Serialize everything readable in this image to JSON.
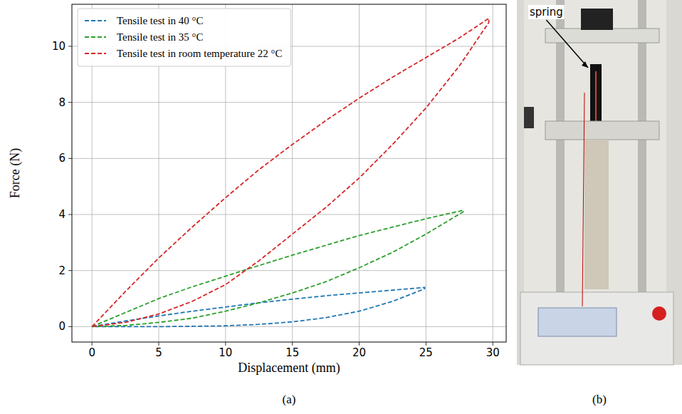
{
  "chart_data": {
    "type": "line",
    "x_label": "Displacement (mm)",
    "y_label": "Force (N)",
    "xlim": [
      -1.5,
      31
    ],
    "ylim": [
      -0.55,
      11.5
    ],
    "xticks": [
      0,
      5,
      10,
      15,
      20,
      25,
      30
    ],
    "yticks": [
      0,
      2,
      4,
      6,
      8,
      10
    ],
    "grid": true,
    "legend": "upper-left",
    "line_style": "dashed",
    "series": [
      {
        "name": "Tensile test in 40 °C",
        "color": "#1f77b4",
        "x": [
          0,
          2.5,
          5,
          7.5,
          10,
          12.5,
          15,
          17.5,
          20,
          22.5,
          24.9,
          24.9,
          22.5,
          20,
          17.5,
          15,
          12.5,
          10,
          7.5,
          5,
          2.5,
          0
        ],
        "values": [
          0,
          0.2,
          0.38,
          0.55,
          0.7,
          0.85,
          0.98,
          1.1,
          1.2,
          1.3,
          1.4,
          1.35,
          0.9,
          0.55,
          0.32,
          0.17,
          0.08,
          0.03,
          0.01,
          0,
          0,
          0
        ]
      },
      {
        "name": "Tensile test in 35 °C",
        "color": "#2ca02c",
        "x": [
          0,
          2.5,
          5,
          7.5,
          10,
          12.5,
          15,
          17.5,
          20,
          22.5,
          25,
          27.8,
          27.8,
          25,
          22.5,
          20,
          17.5,
          15,
          12.5,
          10,
          7.5,
          5,
          2.5,
          0
        ],
        "values": [
          0,
          0.5,
          1.0,
          1.42,
          1.8,
          2.18,
          2.55,
          2.9,
          3.25,
          3.55,
          3.85,
          4.15,
          4.1,
          3.3,
          2.65,
          2.1,
          1.6,
          1.2,
          0.85,
          0.55,
          0.3,
          0.15,
          0.04,
          0
        ]
      },
      {
        "name": "Tensile test in room temperature 22 °C",
        "color": "#d62728",
        "x": [
          0,
          2.5,
          5,
          7.5,
          10,
          12.5,
          15,
          17.5,
          20,
          22.5,
          25,
          27.5,
          29.7,
          29.7,
          27.5,
          25,
          22.5,
          20,
          17.5,
          15,
          12.5,
          10,
          7.5,
          5,
          2.5,
          0
        ],
        "values": [
          0,
          1.25,
          2.45,
          3.55,
          4.6,
          5.6,
          6.5,
          7.35,
          8.15,
          8.9,
          9.6,
          10.3,
          11.0,
          10.85,
          9.3,
          7.8,
          6.5,
          5.3,
          4.25,
          3.3,
          2.35,
          1.5,
          0.9,
          0.45,
          0.15,
          0
        ]
      }
    ]
  },
  "panels": [
    {
      "label": "(a)"
    },
    {
      "label": "(b)",
      "annotation": "spring"
    }
  ]
}
